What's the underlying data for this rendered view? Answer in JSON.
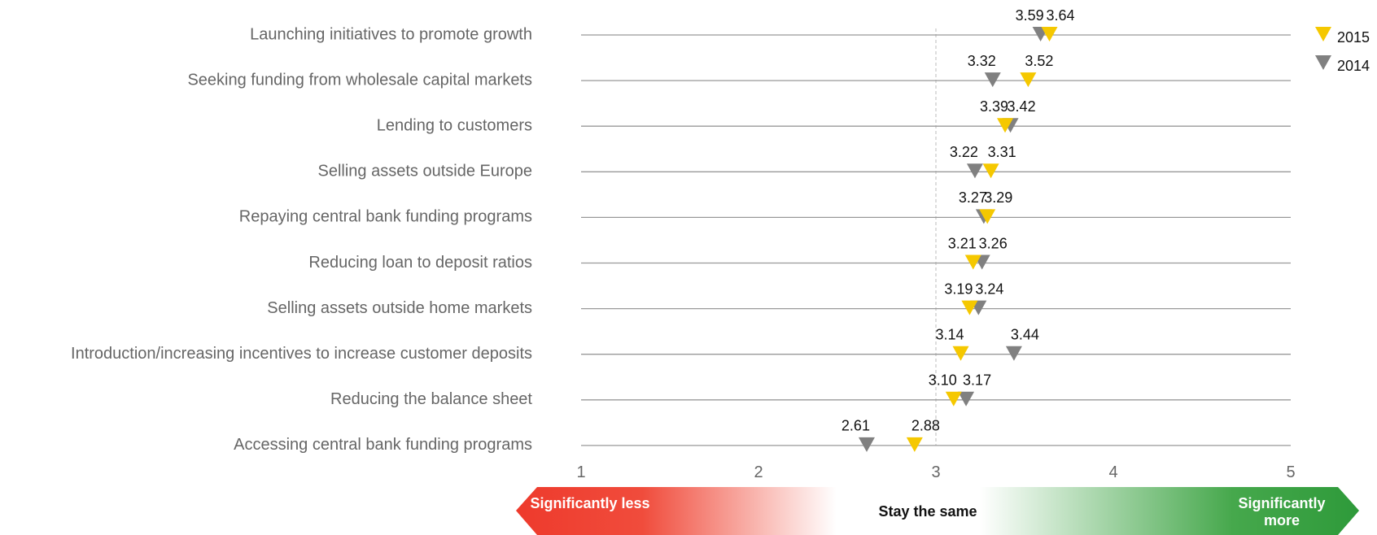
{
  "chart_data": {
    "type": "dot",
    "categories": [
      "Launching initiatives to promote growth",
      "Seeking funding from wholesale capital markets",
      "Lending to customers",
      "Selling assets outside Europe",
      "Repaying central bank funding programs",
      "Reducing loan to deposit ratios",
      "Selling assets outside home markets",
      "Introduction/increasing incentives to increase customer deposits",
      "Reducing the balance sheet",
      "Accessing central bank funding programs"
    ],
    "series": [
      {
        "name": "2015",
        "color": "#f5c800",
        "values": [
          3.64,
          3.52,
          3.39,
          3.31,
          3.29,
          3.21,
          3.19,
          3.14,
          3.1,
          2.88
        ],
        "value_labels": [
          "3.64",
          "3.52",
          "3.39",
          "3.31",
          "3.29",
          "3.21",
          "3.19",
          "3.14",
          "3.10",
          "2.88"
        ]
      },
      {
        "name": "2014",
        "color": "#808080",
        "values": [
          3.59,
          3.32,
          3.42,
          3.22,
          3.27,
          3.26,
          3.24,
          3.44,
          3.17,
          2.61
        ],
        "value_labels": [
          "3.59",
          "3.32",
          "3.42",
          "3.22",
          "3.27",
          "3.26",
          "3.24",
          "3.44",
          "3.17",
          "2.61"
        ]
      }
    ],
    "xlim": [
      1,
      5
    ],
    "xticks": [
      1,
      2,
      3,
      4,
      5
    ],
    "reference_line": 3,
    "legend": "top-right",
    "scale_labels": [
      "Significantly less",
      "Stay the same",
      "Significantly more"
    ]
  }
}
